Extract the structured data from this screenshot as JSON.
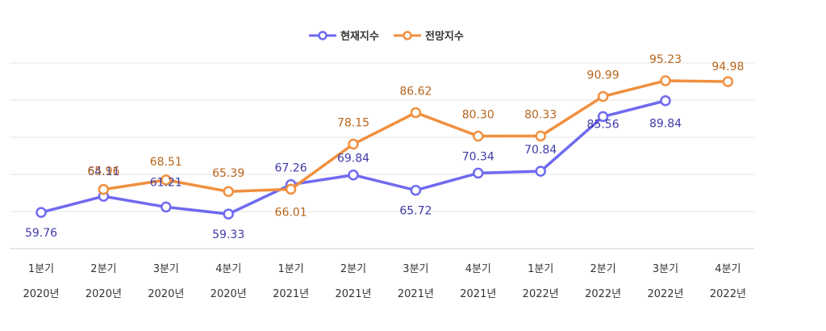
{
  "chart_data": {
    "type": "line",
    "title": "",
    "xlabel": "",
    "ylabel": "",
    "ylim": [
      50,
      100
    ],
    "grid": true,
    "legend_position": "top-center",
    "categories": [
      {
        "quarter": "1분기",
        "year": "2020년"
      },
      {
        "quarter": "2분기",
        "year": "2020년"
      },
      {
        "quarter": "3분기",
        "year": "2020년"
      },
      {
        "quarter": "4분기",
        "year": "2020년"
      },
      {
        "quarter": "1분기",
        "year": "2021년"
      },
      {
        "quarter": "2분기",
        "year": "2021년"
      },
      {
        "quarter": "3분기",
        "year": "2021년"
      },
      {
        "quarter": "4분기",
        "year": "2021년"
      },
      {
        "quarter": "1분기",
        "year": "2022년"
      },
      {
        "quarter": "2분기",
        "year": "2022년"
      },
      {
        "quarter": "3분기",
        "year": "2022년"
      },
      {
        "quarter": "4분기",
        "year": "2022년"
      }
    ],
    "series": [
      {
        "name": "현재지수",
        "color": "#6f6af0",
        "label_color": "#3f3aa8",
        "values": [
          59.76,
          64.11,
          61.21,
          59.33,
          67.26,
          69.84,
          65.72,
          70.34,
          70.84,
          85.56,
          89.84,
          null
        ],
        "labels": [
          "59.76",
          "64.11",
          "61.21",
          "59.33",
          "67.26",
          "69.84",
          "65.72",
          "70.34",
          "70.84",
          "85.56",
          "89.84",
          null
        ]
      },
      {
        "name": "전망지수",
        "color": "#f0903f",
        "label_color": "#b8651c",
        "values": [
          null,
          65.96,
          68.51,
          65.39,
          66.01,
          78.15,
          86.62,
          80.3,
          80.33,
          90.99,
          95.23,
          94.98
        ],
        "labels": [
          null,
          "65.96",
          "68.51",
          "65.39",
          "66.01",
          "78.15",
          "86.62",
          "80.30",
          "80.33",
          "90.99",
          "95.23",
          "94.98"
        ]
      }
    ]
  }
}
